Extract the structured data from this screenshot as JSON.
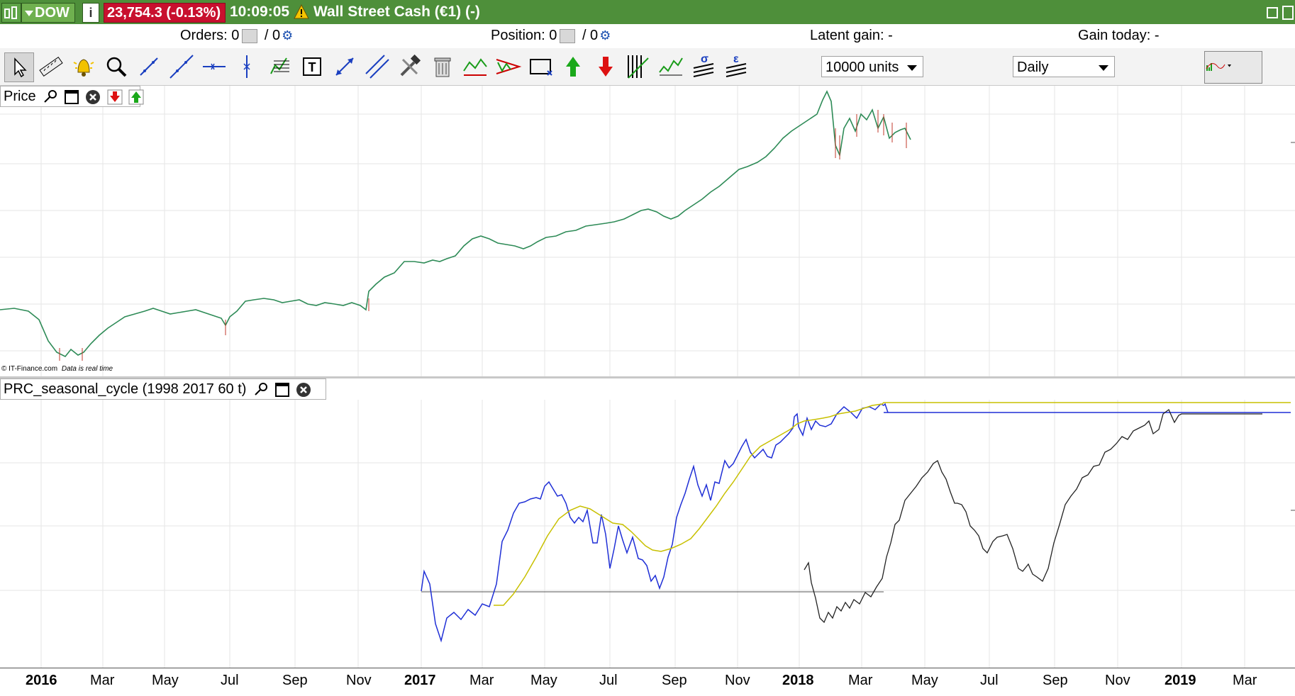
{
  "titlebar": {
    "symbol": "DOW",
    "info_icon": "info-icon",
    "price_badge": "23,754.3 (-0.13%)",
    "time": "10:09:05",
    "warning_icon": "warning-icon",
    "instrument": "Wall Street Cash (€1) (-)",
    "bg_color": "#4e8f3a",
    "price_badge_color": "#c8102e"
  },
  "infobar": {
    "orders_label": "Orders: 0",
    "orders_sep": " / 0",
    "position_label": "Position: 0",
    "position_sep": " / 0",
    "latent_gain": "Latent gain: -",
    "gain_today": "Gain today: -"
  },
  "toolbar": {
    "tools": [
      "pointer-icon",
      "ruler-icon",
      "alert-bell-icon",
      "zoom-icon",
      "trend-line-icon",
      "line-icon",
      "horizontal-line-icon",
      "vertical-line-icon",
      "fibonacci-icon",
      "text-tool-icon",
      "arrow-line-icon",
      "channel-icon",
      "tools-icon",
      "trash-icon",
      "pattern-icon",
      "triangle-icon",
      "rectangle-icon",
      "buy-arrow-icon",
      "sell-arrow-icon",
      "gann-icon",
      "wave-icon",
      "sigma-icon",
      "epsilon-icon"
    ],
    "units_select": "10000 units",
    "period_select": "Daily",
    "chart_type_icon": "chart-type-icon"
  },
  "price_pane": {
    "title": "Price",
    "copyright": "© IT-Finance.com",
    "realtime_note": "Data is real time"
  },
  "indicator_pane": {
    "title": "PRC_seasonal_cycle (1998 2017 60 t)"
  },
  "time_axis": {
    "labels": [
      "2016",
      "Mar",
      "May",
      "Jul",
      "Sep",
      "Nov",
      "2017",
      "Mar",
      "May",
      "Jul",
      "Sep",
      "Nov",
      "2018",
      "Mar",
      "May",
      "Jul",
      "Sep",
      "Nov",
      "2019",
      "Mar"
    ],
    "bold": [
      "2016",
      "2017",
      "2018",
      "2019"
    ]
  },
  "chart_data": [
    {
      "type": "line",
      "title": "Price",
      "x": [
        "2016-01",
        "2016-02",
        "2016-03",
        "2016-05",
        "2016-07",
        "2016-09",
        "2016-11",
        "2017-01",
        "2017-03",
        "2017-05",
        "2017-07",
        "2017-09",
        "2017-11",
        "2018-01",
        "2018-02",
        "2018-03"
      ],
      "series": [
        {
          "values": [
            0.72,
            0.58,
            0.7,
            0.76,
            0.74,
            0.75,
            0.78,
            0.62,
            0.52,
            0.48,
            0.46,
            0.43,
            0.38,
            0.28,
            0.12,
            0.25
          ]
        }
      ],
      "grid": true
    },
    {
      "type": "line",
      "title": "PRC_seasonal_cycle (1998 2017 60 t)",
      "series": [
        {
          "color": "#1f2fd6",
          "values": [
            0.62,
            0.95,
            0.82,
            0.25,
            0.55,
            0.65,
            0.85,
            0.25,
            0.32,
            0.25,
            0.1,
            0.05,
            0.1
          ]
        },
        {
          "color": "#c8c000",
          "values": [
            0.98,
            0.72,
            0.42,
            0.52,
            0.62,
            0.68,
            0.54,
            0.24,
            0.16
          ]
        },
        {
          "color": "#000000",
          "values": [
            0.62,
            0.95,
            0.82,
            0.25,
            0.55,
            0.65,
            0.85,
            0.25,
            0.32,
            0.25,
            0.1,
            0.05,
            0.1
          ]
        }
      ],
      "grid": true
    }
  ]
}
